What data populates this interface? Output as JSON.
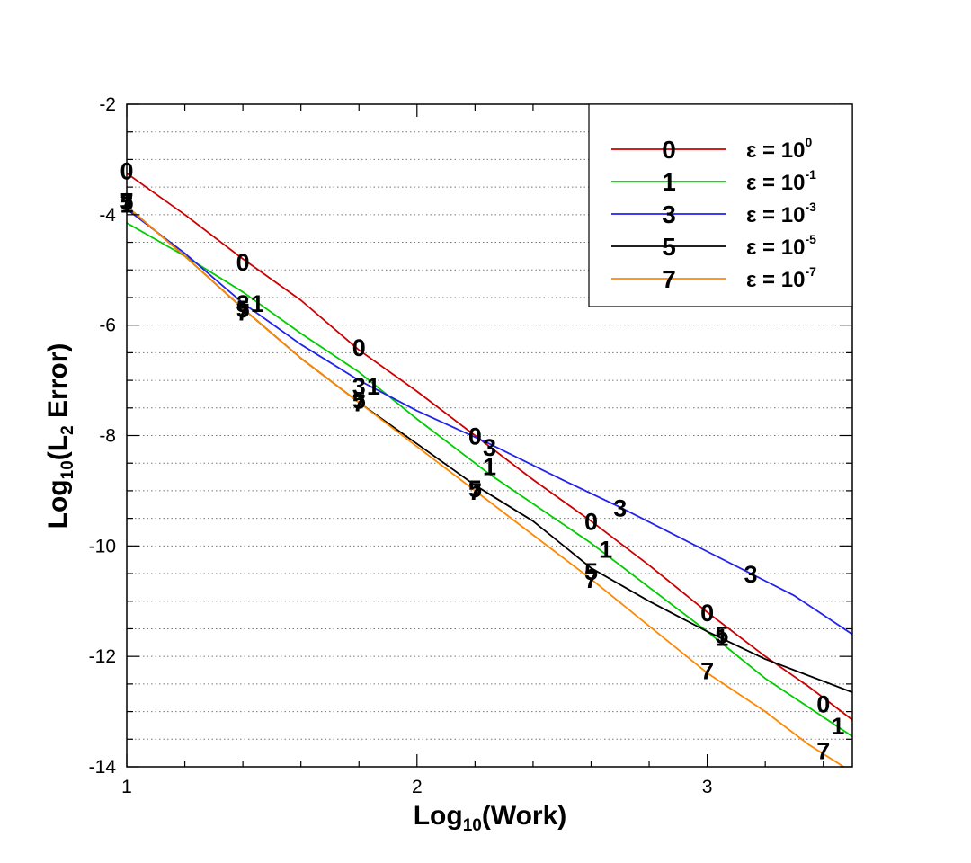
{
  "chart_data": {
    "type": "line",
    "xlabel": {
      "prefix": "Log",
      "sub": "10",
      "suffix": "(Work)"
    },
    "ylabel": {
      "prefix": "Log",
      "sub": "10",
      "mid": "(L",
      "sub2": "2",
      "suffix": " Error)"
    },
    "xlim": [
      1,
      3.5
    ],
    "ylim": [
      -14,
      -2
    ],
    "x_ticks": [
      1,
      2,
      3
    ],
    "y_ticks": [
      -2,
      -4,
      -6,
      -8,
      -10,
      -12,
      -14
    ],
    "grid": "horizontal dotted",
    "legend_position": "top-right",
    "series": [
      {
        "name": "0",
        "color": "#cc0000",
        "legend_label": {
          "prefix": "ε = 10",
          "sup": "0"
        },
        "points": [
          [
            1.0,
            -3.25
          ],
          [
            1.2,
            -4.0
          ],
          [
            1.4,
            -4.8
          ],
          [
            1.6,
            -5.55
          ],
          [
            1.8,
            -6.45
          ],
          [
            2.0,
            -7.2
          ],
          [
            2.2,
            -8.0
          ],
          [
            2.4,
            -8.8
          ],
          [
            2.6,
            -9.55
          ],
          [
            2.8,
            -10.35
          ],
          [
            3.0,
            -11.2
          ],
          [
            3.2,
            -12.0
          ],
          [
            3.35,
            -12.55
          ],
          [
            3.5,
            -13.15
          ]
        ],
        "marks": [
          [
            1.0,
            -3.2
          ],
          [
            1.4,
            -4.85
          ],
          [
            1.8,
            -6.4
          ],
          [
            2.2,
            -8.0
          ],
          [
            2.6,
            -9.55
          ],
          [
            3.0,
            -11.2
          ],
          [
            3.4,
            -12.85
          ]
        ]
      },
      {
        "name": "1",
        "color": "#00cc00",
        "legend_label": {
          "prefix": "ε = 10",
          "sup": "-1"
        },
        "points": [
          [
            1.0,
            -4.15
          ],
          [
            1.2,
            -4.75
          ],
          [
            1.4,
            -5.4
          ],
          [
            1.6,
            -6.15
          ],
          [
            1.8,
            -6.85
          ],
          [
            2.0,
            -7.7
          ],
          [
            2.25,
            -8.7
          ],
          [
            2.6,
            -9.95
          ],
          [
            3.0,
            -11.55
          ],
          [
            3.2,
            -12.4
          ],
          [
            3.5,
            -13.45
          ]
        ],
        "marks": [
          [
            1.0,
            -3.8
          ],
          [
            1.45,
            -5.6
          ],
          [
            1.85,
            -7.1
          ],
          [
            2.25,
            -8.55
          ],
          [
            2.65,
            -10.05
          ],
          [
            3.05,
            -11.65
          ],
          [
            3.45,
            -13.25
          ]
        ]
      },
      {
        "name": "3",
        "color": "#2222ee",
        "legend_label": {
          "prefix": "ε = 10",
          "sup": "-3"
        },
        "points": [
          [
            1.0,
            -3.9
          ],
          [
            1.2,
            -4.7
          ],
          [
            1.4,
            -5.6
          ],
          [
            1.6,
            -6.35
          ],
          [
            1.8,
            -7.0
          ],
          [
            2.0,
            -7.55
          ],
          [
            2.25,
            -8.15
          ],
          [
            2.5,
            -8.8
          ],
          [
            2.7,
            -9.3
          ],
          [
            3.0,
            -10.1
          ],
          [
            3.15,
            -10.5
          ],
          [
            3.3,
            -10.9
          ],
          [
            3.5,
            -11.6
          ]
        ],
        "marks": [
          [
            1.0,
            -3.75
          ],
          [
            1.4,
            -5.6
          ],
          [
            1.8,
            -7.1
          ],
          [
            2.25,
            -8.2
          ],
          [
            2.7,
            -9.3
          ],
          [
            3.15,
            -10.5
          ]
        ]
      },
      {
        "name": "5",
        "color": "#000000",
        "legend_label": {
          "prefix": "ε = 10",
          "sup": "-5"
        },
        "points": [
          [
            1.0,
            -3.85
          ],
          [
            1.2,
            -4.75
          ],
          [
            1.4,
            -5.7
          ],
          [
            1.6,
            -6.6
          ],
          [
            1.8,
            -7.4
          ],
          [
            2.0,
            -8.15
          ],
          [
            2.2,
            -8.9
          ],
          [
            2.4,
            -9.55
          ],
          [
            2.6,
            -10.4
          ],
          [
            2.8,
            -11.0
          ],
          [
            3.0,
            -11.55
          ],
          [
            3.2,
            -12.05
          ],
          [
            3.5,
            -12.65
          ]
        ],
        "marks": [
          [
            1.0,
            -3.75
          ],
          [
            1.4,
            -5.7
          ],
          [
            1.8,
            -7.35
          ],
          [
            2.2,
            -8.95
          ],
          [
            2.6,
            -10.45
          ],
          [
            3.05,
            -11.6
          ]
        ]
      },
      {
        "name": "7",
        "color": "#ff8800",
        "legend_label": {
          "prefix": "ε = 10",
          "sup": "-7"
        },
        "points": [
          [
            1.0,
            -3.85
          ],
          [
            1.2,
            -4.75
          ],
          [
            1.4,
            -5.7
          ],
          [
            1.6,
            -6.6
          ],
          [
            1.8,
            -7.4
          ],
          [
            2.0,
            -8.2
          ],
          [
            2.2,
            -9.0
          ],
          [
            2.4,
            -9.8
          ],
          [
            2.6,
            -10.6
          ],
          [
            2.8,
            -11.45
          ],
          [
            3.0,
            -12.3
          ],
          [
            3.2,
            -13.0
          ],
          [
            3.35,
            -13.6
          ],
          [
            3.5,
            -14.1
          ]
        ],
        "marks": [
          [
            1.0,
            -3.75
          ],
          [
            1.4,
            -5.75
          ],
          [
            1.8,
            -7.4
          ],
          [
            2.2,
            -9.0
          ],
          [
            2.6,
            -10.6
          ],
          [
            3.0,
            -12.25
          ],
          [
            3.4,
            -13.7
          ]
        ]
      }
    ]
  }
}
